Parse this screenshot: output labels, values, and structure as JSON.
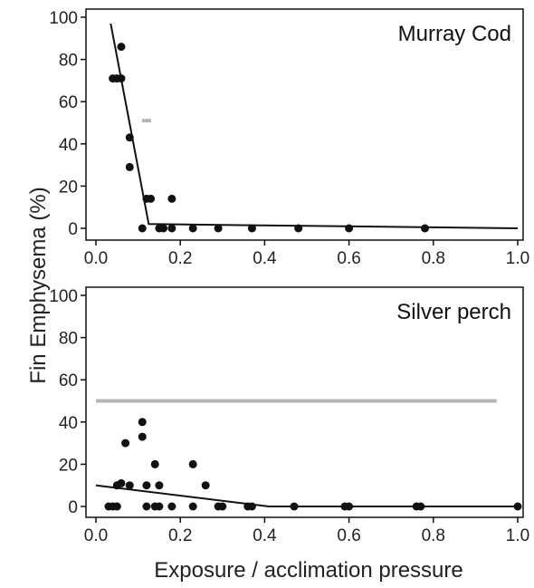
{
  "chart_data": {
    "type": "scatter",
    "ylabel": "Fin Emphysema (%)",
    "xlabel": "Exposure / acclimation pressure",
    "panels": [
      {
        "title": "Murray Cod",
        "xlim": [
          0.0,
          1.0
        ],
        "ylim": [
          0,
          100
        ],
        "x_ticks": [
          "0.0",
          "0.2",
          "0.4",
          "0.6",
          "0.8",
          "1.0"
        ],
        "y_ticks": [
          "0",
          "20",
          "40",
          "60",
          "80",
          "100"
        ],
        "points": [
          {
            "x": 0.04,
            "y": 71
          },
          {
            "x": 0.05,
            "y": 71
          },
          {
            "x": 0.06,
            "y": 86
          },
          {
            "x": 0.06,
            "y": 71
          },
          {
            "x": 0.08,
            "y": 43
          },
          {
            "x": 0.08,
            "y": 29
          },
          {
            "x": 0.11,
            "y": 0
          },
          {
            "x": 0.12,
            "y": 14
          },
          {
            "x": 0.13,
            "y": 14
          },
          {
            "x": 0.15,
            "y": 0
          },
          {
            "x": 0.16,
            "y": 0
          },
          {
            "x": 0.18,
            "y": 14
          },
          {
            "x": 0.18,
            "y": 0
          },
          {
            "x": 0.23,
            "y": 0
          },
          {
            "x": 0.29,
            "y": 0
          },
          {
            "x": 0.37,
            "y": 0
          },
          {
            "x": 0.48,
            "y": 0
          },
          {
            "x": 0.6,
            "y": 0
          },
          {
            "x": 0.78,
            "y": 0
          }
        ],
        "fit_line": [
          {
            "x": 0.035,
            "y": 97
          },
          {
            "x": 0.125,
            "y": 2
          },
          {
            "x": 1.0,
            "y": 0
          }
        ],
        "gray_marks": [
          {
            "x": 0.12,
            "y": 51
          }
        ]
      },
      {
        "title": "Silver perch",
        "xlim": [
          0.0,
          1.0
        ],
        "ylim": [
          0,
          100
        ],
        "x_ticks": [
          "0.0",
          "0.2",
          "0.4",
          "0.6",
          "0.8",
          "1.0"
        ],
        "y_ticks": [
          "0",
          "20",
          "40",
          "60",
          "80",
          "100"
        ],
        "points": [
          {
            "x": 0.03,
            "y": 0
          },
          {
            "x": 0.04,
            "y": 0
          },
          {
            "x": 0.05,
            "y": 0
          },
          {
            "x": 0.05,
            "y": 10
          },
          {
            "x": 0.06,
            "y": 11
          },
          {
            "x": 0.07,
            "y": 30
          },
          {
            "x": 0.08,
            "y": 10
          },
          {
            "x": 0.11,
            "y": 40
          },
          {
            "x": 0.11,
            "y": 33
          },
          {
            "x": 0.12,
            "y": 10
          },
          {
            "x": 0.12,
            "y": 0
          },
          {
            "x": 0.14,
            "y": 20
          },
          {
            "x": 0.14,
            "y": 0
          },
          {
            "x": 0.15,
            "y": 10
          },
          {
            "x": 0.15,
            "y": 0
          },
          {
            "x": 0.18,
            "y": 0
          },
          {
            "x": 0.23,
            "y": 20
          },
          {
            "x": 0.23,
            "y": 0
          },
          {
            "x": 0.26,
            "y": 10
          },
          {
            "x": 0.29,
            "y": 0
          },
          {
            "x": 0.3,
            "y": 0
          },
          {
            "x": 0.36,
            "y": 0
          },
          {
            "x": 0.37,
            "y": 0
          },
          {
            "x": 0.47,
            "y": 0
          },
          {
            "x": 0.59,
            "y": 0
          },
          {
            "x": 0.6,
            "y": 0
          },
          {
            "x": 0.76,
            "y": 0
          },
          {
            "x": 0.77,
            "y": 0
          },
          {
            "x": 1.0,
            "y": 0
          }
        ],
        "fit_line": [
          {
            "x": 0.0,
            "y": 10
          },
          {
            "x": 0.41,
            "y": 0
          },
          {
            "x": 1.0,
            "y": 0
          }
        ],
        "gray_hline": {
          "x1": 0.0,
          "x2": 0.95,
          "y": 50
        }
      }
    ]
  }
}
